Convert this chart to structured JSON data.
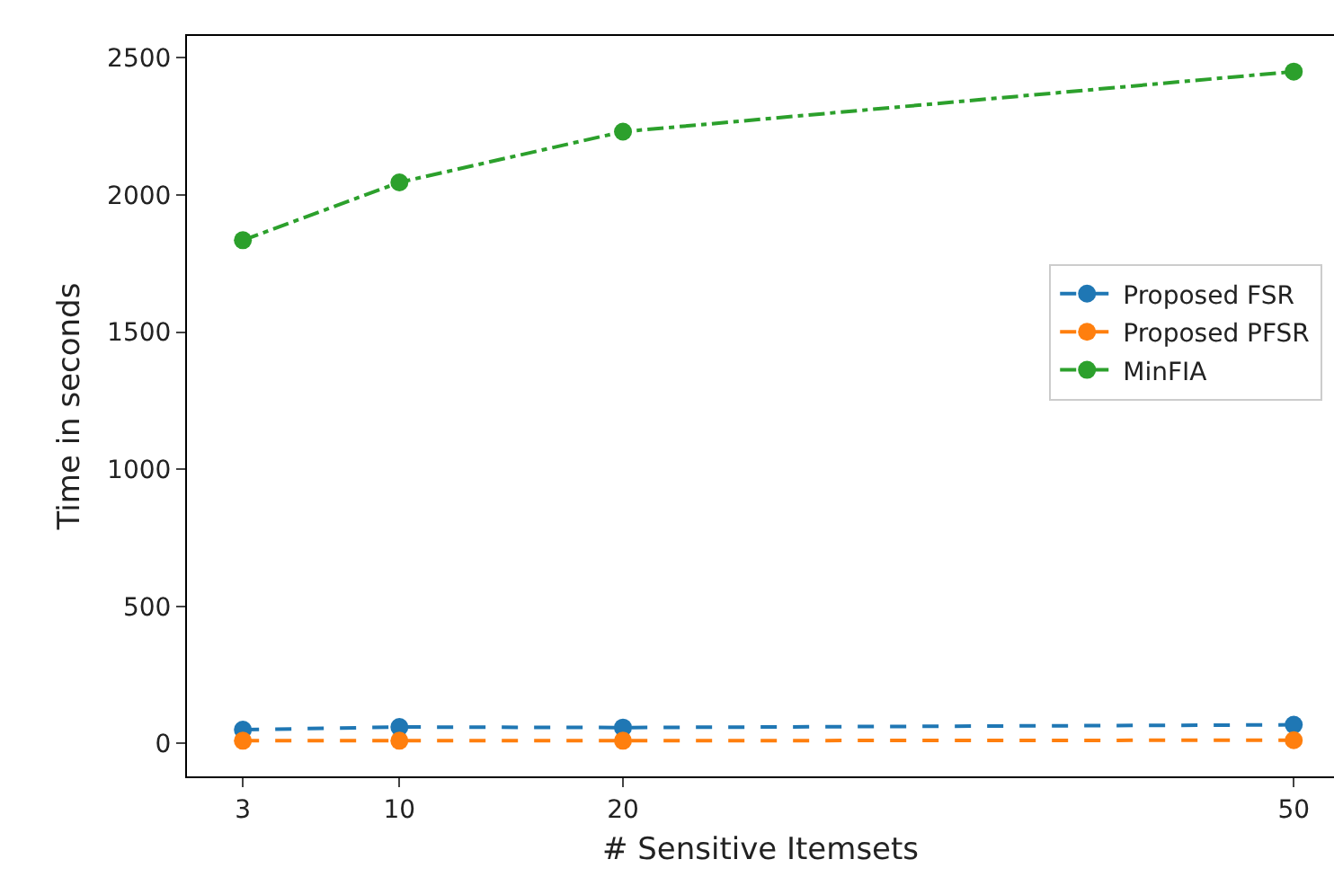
{
  "chart_data": {
    "type": "line",
    "xlabel": "# Sensitive Itemsets",
    "ylabel": "Time in seconds",
    "x": [
      3,
      10,
      20,
      50
    ],
    "series": [
      {
        "name": "Proposed FSR",
        "color": "#1f77b4",
        "values": [
          50,
          60,
          58,
          68
        ],
        "line_style": "dashed"
      },
      {
        "name": "Proposed PFSR",
        "color": "#ff7f0e",
        "values": [
          10,
          10,
          10,
          12
        ],
        "line_style": "dashed"
      },
      {
        "name": "MinFIA",
        "color": "#2ca02c",
        "values": [
          1835,
          2046,
          2231,
          2450
        ],
        "line_style": "dotted"
      }
    ],
    "xlim": [
      0.5,
      51.8
    ],
    "xticks": [
      3,
      10,
      20,
      50
    ],
    "ylim": [
      -120,
      2580
    ],
    "yticks": [
      0,
      500,
      1000,
      1500,
      2000,
      2500
    ],
    "marker": "circle",
    "legend": "right",
    "grid": false
  }
}
